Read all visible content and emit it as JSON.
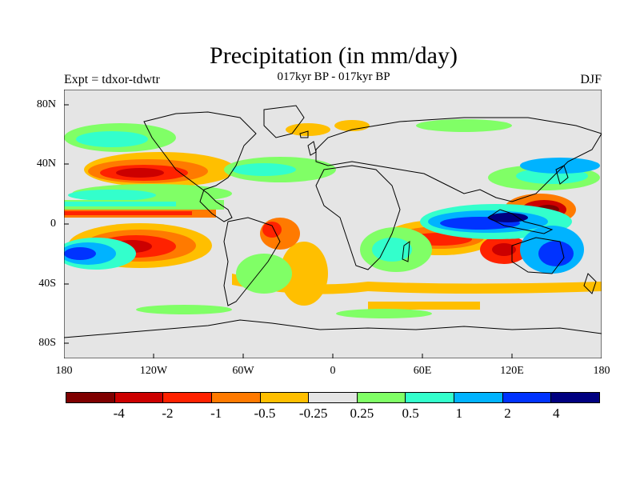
{
  "title": "Precipitation (in mm/day)",
  "left_label": "Expt = tdxor-tdwtr",
  "center_label": "017kyr BP - 017kyr BP",
  "right_label": "DJF",
  "map": {
    "type": "contour-map",
    "lat_ticks": [
      "80N",
      "40N",
      "0",
      "40S",
      "80S"
    ],
    "lon_ticks": [
      "180",
      "120W",
      "60W",
      "0",
      "60E",
      "120E",
      "180"
    ],
    "background_color": "#e5e5e5",
    "coastline_color": "#000000"
  },
  "colorbar": {
    "colors": [
      "#7f0000",
      "#cc0000",
      "#ff2200",
      "#ff7a00",
      "#ffbf00",
      "#e5e5e5",
      "#80ff66",
      "#33ffcc",
      "#00b3ff",
      "#0033ff",
      "#000080"
    ],
    "labels": [
      "-4",
      "-2",
      "-1",
      "-0.5",
      "-0.25",
      "0.25",
      "0.5",
      "1",
      "2",
      "4"
    ]
  }
}
